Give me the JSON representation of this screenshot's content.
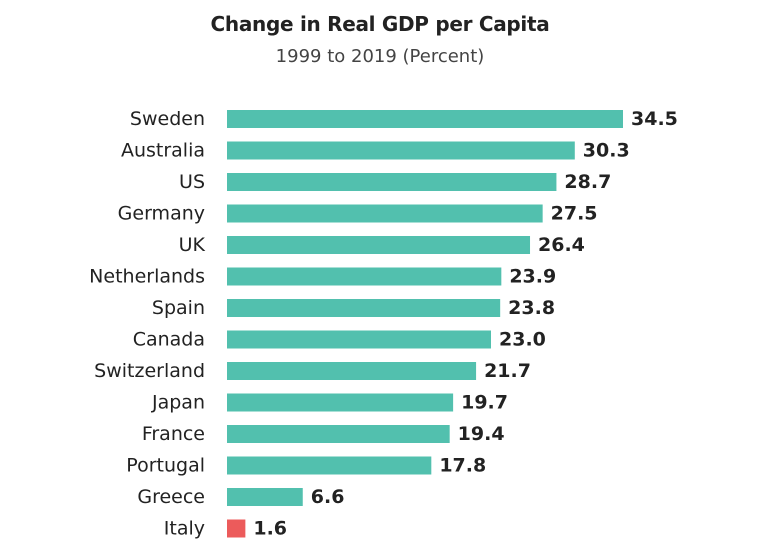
{
  "chart_data": {
    "type": "bar",
    "orientation": "horizontal",
    "title": "Change in Real GDP per Capita",
    "subtitle": "1999 to 2019 (Percent)",
    "categories": [
      "Sweden",
      "Australia",
      "US",
      "Germany",
      "UK",
      "Netherlands",
      "Spain",
      "Canada",
      "Switzerland",
      "Japan",
      "France",
      "Portugal",
      "Greece",
      "Italy"
    ],
    "values": [
      34.5,
      30.3,
      28.7,
      27.5,
      26.4,
      23.9,
      23.8,
      23.0,
      21.7,
      19.7,
      19.4,
      17.8,
      6.6,
      1.6
    ],
    "value_labels": [
      "34.5",
      "30.3",
      "28.7",
      "27.5",
      "26.4",
      "23.9",
      "23.8",
      "23.0",
      "21.7",
      "19.7",
      "19.4",
      "17.8",
      "6.6",
      "1.6"
    ],
    "xlim": [
      0,
      34.5
    ],
    "grid": false,
    "colors": {
      "default": "#52c0ae",
      "highlight": "#ec5b5b"
    },
    "highlight_categories": [
      "Italy"
    ]
  }
}
